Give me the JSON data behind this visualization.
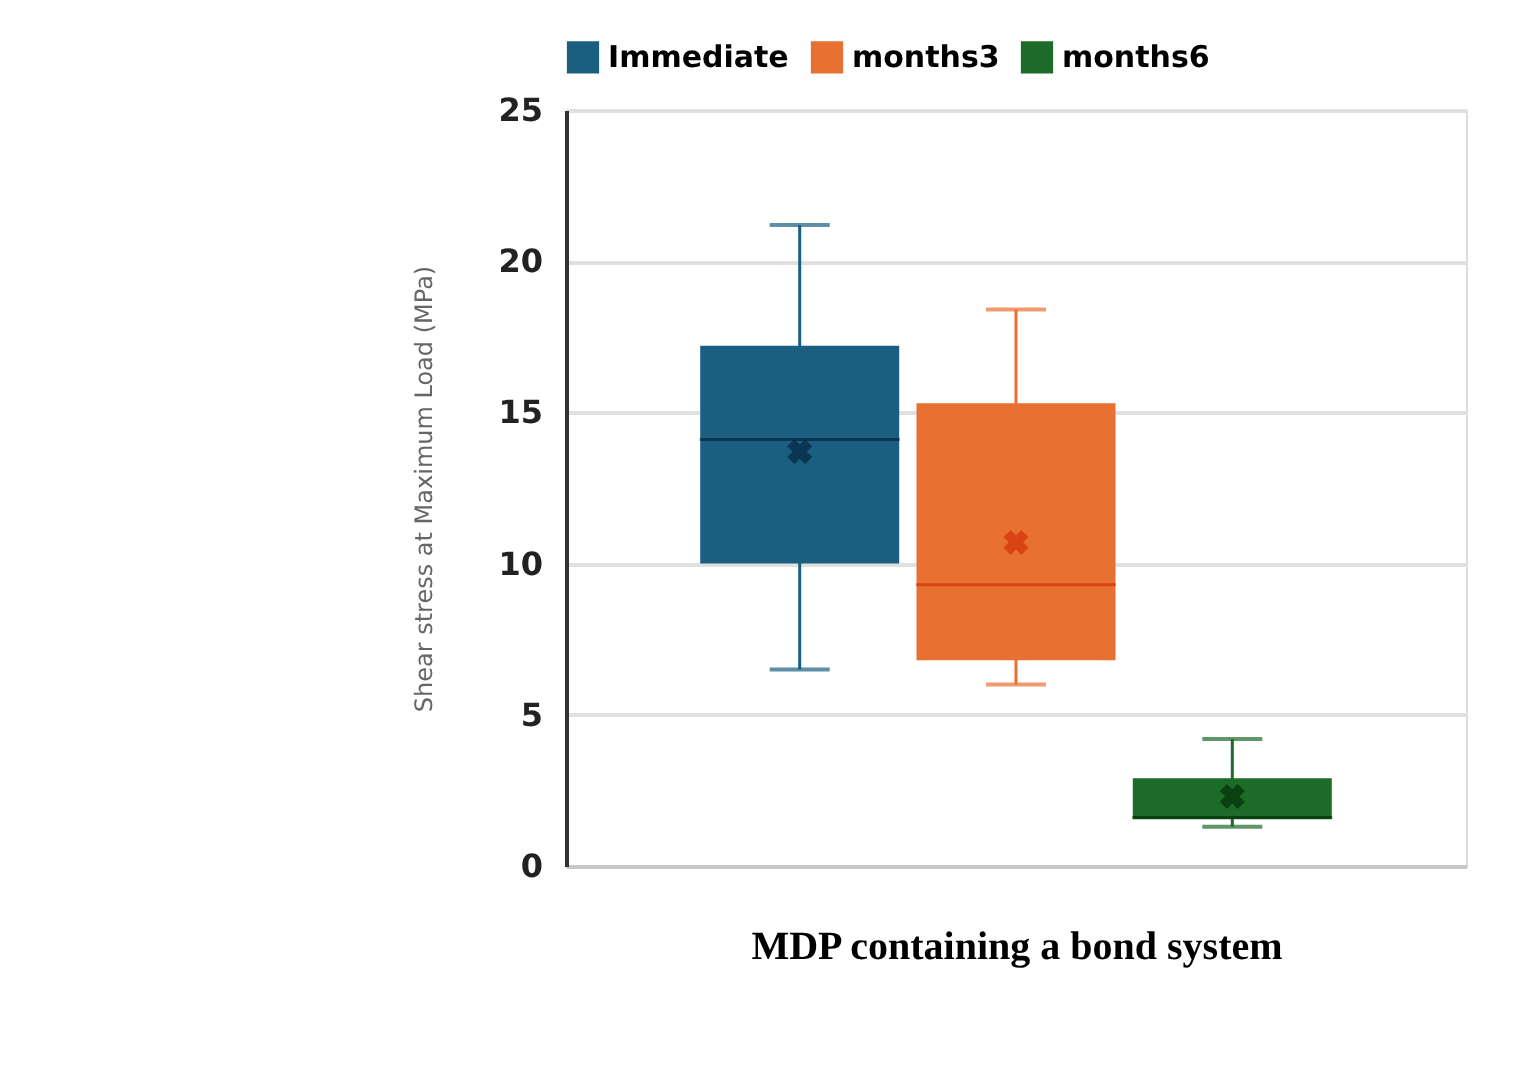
{
  "chart_data": {
    "type": "box",
    "xlabel": "MDP containing a bond system",
    "ylabel": "Shear stress at Maximum Load (MPa)",
    "categories": [
      null
    ],
    "series": [
      {
        "name": "Immediate",
        "color": "#1a5f80",
        "boxes": [
          {
            "low": 6.5,
            "q1": 10.0,
            "median": 14.1,
            "q3": 17.2,
            "high": 21.2,
            "mean": 13.7
          }
        ]
      },
      {
        "name": "months3",
        "color": "#e87030",
        "boxes": [
          {
            "low": 6.0,
            "q1": 6.8,
            "median": 9.3,
            "q3": 15.3,
            "high": 18.4,
            "mean": 10.7
          }
        ]
      },
      {
        "name": "months6",
        "color": "#1c6b28",
        "boxes": [
          {
            "low": 1.3,
            "q1": 1.55,
            "median": 1.6,
            "q3": 2.9,
            "high": 4.2,
            "mean": 2.3
          }
        ]
      }
    ],
    "ylim": [
      0,
      25
    ],
    "yticks": [
      0,
      5,
      10,
      15,
      20,
      25
    ],
    "grid": "y",
    "legend": "top",
    "tick_labels": "y"
  }
}
